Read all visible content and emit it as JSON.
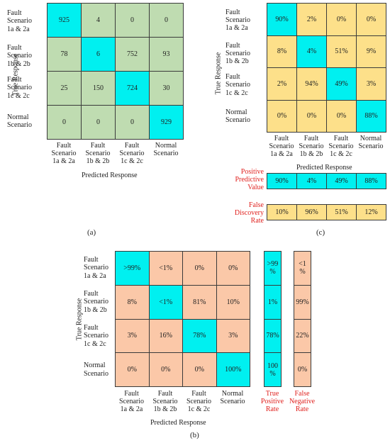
{
  "colors": {
    "green": "#bfdcb1",
    "cyan": "#00f0f0",
    "yellow": "#fde08a",
    "salmon": "#fbc8a8",
    "red": "#e0221f"
  },
  "chart_data": [
    {
      "id": "a",
      "type": "heatmap",
      "subfigure_label": "(a)",
      "rows": [
        "Fault\nScenario\n1a & 2a",
        "Fault\nScenario\n1b & 2b",
        "Fault\nScenario\n1c & 2c",
        "Normal\nScenario"
      ],
      "columns": [
        "Fault\nScenario\n1a & 2a",
        "Fault\nScenario\n1b & 2b",
        "Fault\nScenario\n1c & 2c",
        "Normal\nScenario"
      ],
      "values": [
        [
          925,
          4,
          0,
          0
        ],
        [
          78,
          6,
          752,
          93
        ],
        [
          25,
          150,
          724,
          30
        ],
        [
          0,
          0,
          0,
          929
        ]
      ],
      "xlabel": "Predicted Response",
      "ylabel": "True Response"
    },
    {
      "id": "b",
      "type": "heatmap",
      "subfigure_label": "(b)",
      "rows": [
        "Fault\nScenario\n1a & 2a",
        "Fault\nScenario\n1b & 2b",
        "Fault\nScenario\n1c & 2c",
        "Normal\nScenario"
      ],
      "columns": [
        "Fault\nScenario\n1a & 2a",
        "Fault\nScenario\n1b & 2b",
        "Fault\nScenario\n1c & 2c",
        "Normal\nScenario"
      ],
      "values": [
        [
          ">99%",
          "<1%",
          "0%",
          "0%"
        ],
        [
          "8%",
          "<1%",
          "81%",
          "10%"
        ],
        [
          "3%",
          "16%",
          "78%",
          "3%"
        ],
        [
          "0%",
          "0%",
          "0%",
          "100%"
        ]
      ],
      "xlabel": "Predicted Response",
      "ylabel": "True Response",
      "true_positive_rate": {
        "label": "True\nPositive\nRate",
        "values": [
          ">99\n%",
          "1%",
          "78%",
          "100\n%"
        ]
      },
      "false_negative_rate": {
        "label": "False\nNegative\nRate",
        "values": [
          "<1\n%",
          "99%",
          "22%",
          "0%"
        ]
      }
    },
    {
      "id": "c",
      "type": "heatmap",
      "subfigure_label": "(c)",
      "rows": [
        "Fault\nScenario\n1a & 2a",
        "Fault\nScenario\n1b & 2b",
        "Fault\nScenario\n1c & 2c",
        "Normal\nScenario"
      ],
      "columns": [
        "Fault\nScenario\n1a & 2a",
        "Fault\nScenario\n1b & 2b",
        "Fault\nScenario\n1c & 2c",
        "Normal\nScenario"
      ],
      "values": [
        [
          "90%",
          "2%",
          "0%",
          "0%"
        ],
        [
          "8%",
          "4%",
          "51%",
          "9%"
        ],
        [
          "2%",
          "94%",
          "49%",
          "3%"
        ],
        [
          "0%",
          "0%",
          "0%",
          "88%"
        ]
      ],
      "xlabel": "Predicted Response",
      "ylabel": "True Response",
      "positive_predictive_value": {
        "label": "Positive\nPredictive\nValue",
        "values": [
          "90%",
          "4%",
          "49%",
          "88%"
        ]
      },
      "false_discovery_rate": {
        "label": "False\nDiscovery\nRate",
        "values": [
          "10%",
          "96%",
          "51%",
          "12%"
        ]
      }
    }
  ]
}
